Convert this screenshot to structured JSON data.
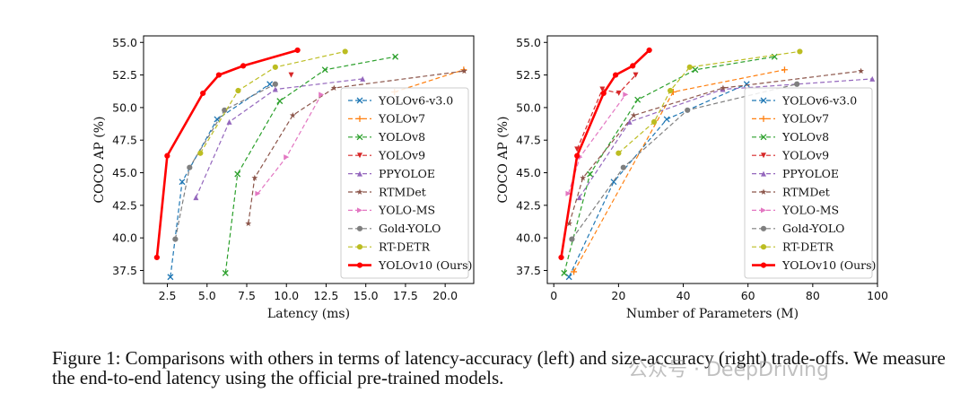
{
  "chart_data": [
    {
      "type": "line",
      "xlabel": "Latency (ms)",
      "ylabel": "COCO AP (%)",
      "xlim": [
        1.0,
        21.8
      ],
      "ylim": [
        36.5,
        55.5
      ],
      "xticks": [
        "2.5",
        "5.0",
        "7.5",
        "10.0",
        "12.5",
        "15.0",
        "17.5",
        "20.0"
      ],
      "yticks": [
        "37.5",
        "40.0",
        "42.5",
        "45.0",
        "47.5",
        "50.0",
        "52.5",
        "55.0"
      ],
      "grid": false,
      "legend": "lower-right",
      "series": [
        {
          "name": "YOLOv6-v3.0",
          "color": "#1f77b4",
          "marker": "x",
          "x": [
            2.69,
            3.43,
            5.63,
            8.95
          ],
          "y": [
            37.0,
            44.3,
            49.1,
            51.8
          ]
        },
        {
          "name": "YOLOv7",
          "color": "#ff7f0e",
          "marker": "+",
          "x": [
            16.81,
            21.17
          ],
          "y": [
            51.2,
            52.9
          ]
        },
        {
          "name": "YOLOv8",
          "color": "#2ca02c",
          "marker": "x",
          "x": [
            6.16,
            6.92,
            9.58,
            12.43,
            16.86
          ],
          "y": [
            37.3,
            44.9,
            50.5,
            52.9,
            53.9
          ]
        },
        {
          "name": "YOLOv9",
          "color": "#d62728",
          "marker": "v",
          "x": [
            10.3
          ],
          "y": [
            52.5
          ]
        },
        {
          "name": "PPYOLOE",
          "color": "#9467bd",
          "marker": "^",
          "x": [
            4.3,
            6.4,
            9.3,
            14.8
          ],
          "y": [
            43.1,
            48.9,
            51.4,
            52.2
          ]
        },
        {
          "name": "RTMDet",
          "color": "#8c564b",
          "marker": "*",
          "x": [
            7.6,
            8.0,
            10.4,
            13.0,
            21.2
          ],
          "y": [
            41.1,
            44.6,
            49.4,
            51.5,
            52.8
          ]
        },
        {
          "name": "YOLO-MS",
          "color": "#e377c2",
          "marker": ">",
          "x": [
            8.2,
            10.0,
            12.2
          ],
          "y": [
            43.4,
            46.2,
            51.0
          ]
        },
        {
          "name": "Gold-YOLO",
          "color": "#7f7f7f",
          "marker": "o",
          "x": [
            3.0,
            3.9,
            6.1,
            9.3
          ],
          "y": [
            39.9,
            45.4,
            49.8,
            51.8
          ]
        },
        {
          "name": "RT-DETR",
          "color": "#bcbd22",
          "marker": "o",
          "x": [
            4.58,
            6.96,
            9.3,
            13.7
          ],
          "y": [
            46.5,
            51.3,
            53.1,
            54.3
          ]
        },
        {
          "name": "YOLOv10 (Ours)",
          "color": "#ff0000",
          "marker": "o",
          "x": [
            1.84,
            2.49,
            4.74,
            5.74,
            7.28,
            10.7
          ],
          "y": [
            38.5,
            46.3,
            51.1,
            52.5,
            53.2,
            54.4
          ]
        }
      ]
    },
    {
      "type": "line",
      "xlabel": "Number of Parameters (M)",
      "ylabel": "COCO AP (%)",
      "xlim": [
        -2,
        100
      ],
      "ylim": [
        36.5,
        55.5
      ],
      "xticks": [
        "0",
        "20",
        "40",
        "60",
        "80",
        "100"
      ],
      "yticks": [
        "37.5",
        "40.0",
        "42.5",
        "45.0",
        "47.5",
        "50.0",
        "52.5",
        "55.0"
      ],
      "grid": false,
      "legend": "lower-right",
      "series": [
        {
          "name": "YOLOv6-v3.0",
          "color": "#1f77b4",
          "marker": "x",
          "x": [
            4.7,
            18.5,
            34.9,
            59.6
          ],
          "y": [
            37.0,
            44.3,
            49.1,
            51.8
          ]
        },
        {
          "name": "YOLOv7",
          "color": "#ff7f0e",
          "marker": "+",
          "x": [
            6.2,
            36.9,
            71.3
          ],
          "y": [
            37.4,
            51.2,
            52.9
          ]
        },
        {
          "name": "YOLOv8",
          "color": "#2ca02c",
          "marker": "x",
          "x": [
            3.2,
            11.2,
            25.9,
            43.7,
            68.2
          ],
          "y": [
            37.3,
            44.9,
            50.6,
            52.9,
            53.9
          ]
        },
        {
          "name": "YOLOv9",
          "color": "#d62728",
          "marker": "v",
          "x": [
            7.2,
            15.0,
            20.1,
            25.3
          ],
          "y": [
            46.8,
            51.4,
            51.1,
            52.5
          ]
        },
        {
          "name": "PPYOLOE",
          "color": "#9467bd",
          "marker": "^",
          "x": [
            7.9,
            23.4,
            52.2,
            98.4
          ],
          "y": [
            43.1,
            48.9,
            51.4,
            52.2
          ]
        },
        {
          "name": "RTMDet",
          "color": "#8c564b",
          "marker": "*",
          "x": [
            4.8,
            9.0,
            24.7,
            52.3,
            94.9
          ],
          "y": [
            41.1,
            44.6,
            49.4,
            51.5,
            52.8
          ]
        },
        {
          "name": "YOLO-MS",
          "color": "#e377c2",
          "marker": ">",
          "x": [
            4.5,
            8.1,
            22.2
          ],
          "y": [
            43.4,
            46.2,
            51.0
          ]
        },
        {
          "name": "Gold-YOLO",
          "color": "#7f7f7f",
          "marker": "o",
          "x": [
            5.6,
            21.5,
            41.3,
            75.1
          ],
          "y": [
            39.9,
            45.4,
            49.8,
            51.8
          ]
        },
        {
          "name": "RT-DETR",
          "color": "#bcbd22",
          "marker": "o",
          "x": [
            20.0,
            31.0,
            36.0,
            42.0,
            76.0
          ],
          "y": [
            46.5,
            48.9,
            51.3,
            53.1,
            54.3
          ]
        },
        {
          "name": "YOLOv10 (Ours)",
          "color": "#ff0000",
          "marker": "o",
          "x": [
            2.3,
            7.2,
            15.4,
            19.1,
            24.4,
            29.5
          ],
          "y": [
            38.5,
            46.3,
            51.1,
            52.5,
            53.2,
            54.4
          ]
        }
      ]
    }
  ],
  "caption": "Figure 1: Comparisons with others in terms of latency-accuracy (left) and size-accuracy (right) trade-offs. We measure the end-to-end latency using the official pre-trained models.",
  "watermark": "公众号 · DeepDriving"
}
